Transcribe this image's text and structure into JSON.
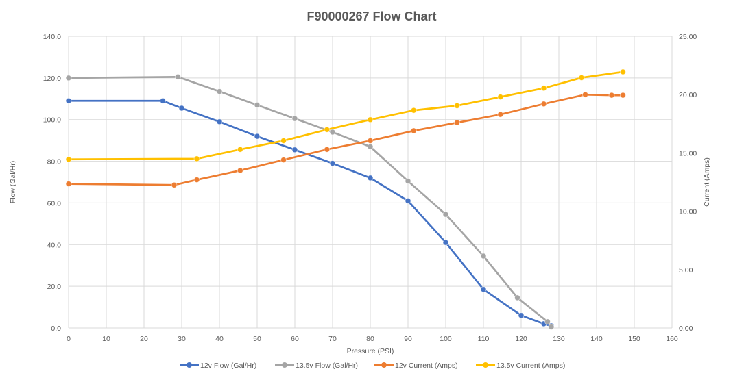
{
  "chart_data": {
    "type": "line",
    "title": "F90000267 Flow Chart",
    "xlabel": "Pressure (PSI)",
    "ylabel": "Flow (Gal/Hr)",
    "y2label": "Current (Amps)",
    "xlim": [
      0,
      160
    ],
    "ylim": [
      0,
      140
    ],
    "y2lim": [
      0,
      25
    ],
    "x_ticks": [
      "0",
      "10",
      "20",
      "30",
      "40",
      "50",
      "60",
      "70",
      "80",
      "90",
      "100",
      "110",
      "120",
      "130",
      "140",
      "150",
      "160"
    ],
    "y_ticks": [
      "0.0",
      "20.0",
      "40.0",
      "60.0",
      "80.0",
      "100.0",
      "120.0",
      "140.0"
    ],
    "y2_ticks": [
      "0.00",
      "5.00",
      "10.00",
      "15.00",
      "20.00",
      "25.00"
    ],
    "grid": true,
    "legend_position": "bottom",
    "series": [
      {
        "name": "12v Flow (Gal/Hr)",
        "axis": "left",
        "color": "#4472c4",
        "points": [
          [
            0,
            109
          ],
          [
            25,
            109
          ],
          [
            30,
            105.5
          ],
          [
            40,
            99
          ],
          [
            50,
            92
          ],
          [
            60,
            85.5
          ],
          [
            70,
            79
          ],
          [
            80,
            72
          ],
          [
            90,
            61
          ],
          [
            100,
            41
          ],
          [
            110,
            18.5
          ],
          [
            120,
            6
          ],
          [
            126,
            2
          ],
          [
            128,
            1
          ]
        ]
      },
      {
        "name": "13.5v Flow (Gal/Hr)",
        "axis": "left",
        "color": "#a5a5a5",
        "points": [
          [
            0,
            120
          ],
          [
            29,
            120.5
          ],
          [
            40,
            113.5
          ],
          [
            50,
            107
          ],
          [
            60,
            100.5
          ],
          [
            70,
            94
          ],
          [
            80,
            87
          ],
          [
            90,
            70.5
          ],
          [
            100,
            54.5
          ],
          [
            110,
            34.5
          ],
          [
            119,
            14.5
          ],
          [
            127,
            3
          ],
          [
            128,
            0.5
          ]
        ]
      },
      {
        "name": "12v Current (Amps)",
        "axis": "right",
        "color": "#ed7d31",
        "points": [
          [
            0,
            12.35
          ],
          [
            28,
            12.25
          ],
          [
            34,
            12.7
          ],
          [
            45.5,
            13.5
          ],
          [
            57,
            14.4
          ],
          [
            68.5,
            15.3
          ],
          [
            80,
            16.05
          ],
          [
            91.5,
            16.9
          ],
          [
            103,
            17.6
          ],
          [
            114.5,
            18.3
          ],
          [
            126,
            19.2
          ],
          [
            137,
            20.0
          ],
          [
            144,
            19.95
          ],
          [
            147,
            19.95
          ]
        ]
      },
      {
        "name": "13.5v Current (Amps)",
        "axis": "right",
        "color": "#ffc000",
        "points": [
          [
            0,
            14.45
          ],
          [
            34,
            14.5
          ],
          [
            45.5,
            15.3
          ],
          [
            57,
            16.05
          ],
          [
            68.5,
            17.0
          ],
          [
            80,
            17.85
          ],
          [
            91.5,
            18.65
          ],
          [
            103,
            19.05
          ],
          [
            114.5,
            19.8
          ],
          [
            126,
            20.55
          ],
          [
            136,
            21.45
          ],
          [
            147,
            21.95
          ]
        ]
      }
    ]
  }
}
